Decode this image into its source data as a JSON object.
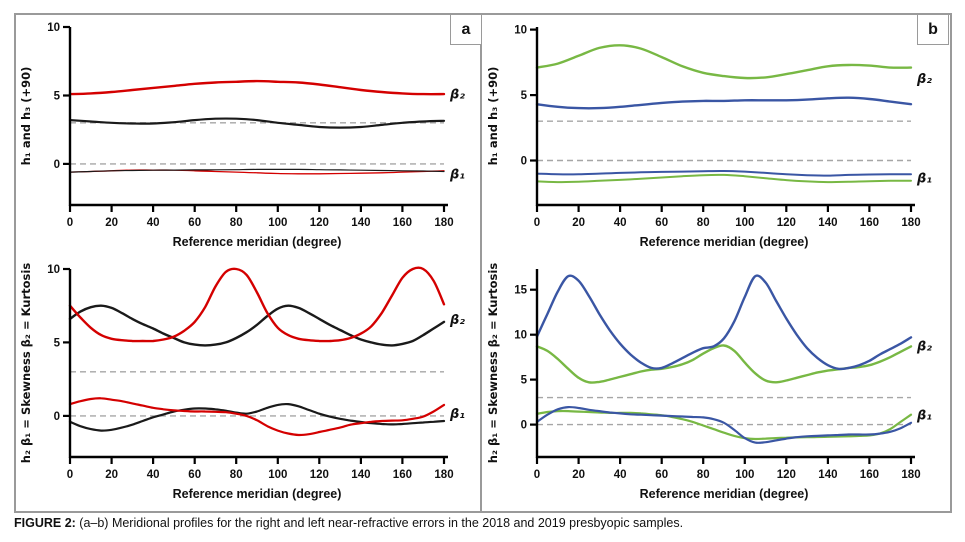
{
  "caption": {
    "prefix": "FIGURE 2:",
    "text": " (a–b) Meridional profiles for the right and left near-refractive errors in the 2018 and 2019 presbyopic samples."
  },
  "panels": [
    {
      "label": "a"
    },
    {
      "label": "b"
    }
  ],
  "colors": {
    "axis": "#000000",
    "dashed_guide": "#a6a6a6",
    "frame_border": "#9a9a9a",
    "red": "#d40000",
    "black_curve": "#1a1a1a",
    "green": "#78b844",
    "blue": "#3a56a4"
  },
  "chart_data": [
    {
      "id": "panel-a-top",
      "type": "line",
      "panel": "a",
      "xlabel": "Reference meridian (degree)",
      "ylabel": "h₁ and h₃ (+90)",
      "xlim": [
        0,
        180
      ],
      "xticks": [
        0,
        20,
        40,
        60,
        80,
        100,
        120,
        140,
        160,
        180
      ],
      "ylim": [
        -3.0,
        10
      ],
      "yticks": [
        0,
        5,
        10
      ],
      "grid": false,
      "legend_position": "none",
      "dashed_lines": [
        3,
        0
      ],
      "x": [
        0,
        10,
        20,
        30,
        40,
        50,
        60,
        70,
        80,
        90,
        100,
        110,
        120,
        130,
        140,
        150,
        160,
        170,
        180
      ],
      "series": [
        {
          "name": "red-beta2",
          "color": "#d40000",
          "width": 2.4,
          "values": [
            5.1,
            5.15,
            5.25,
            5.4,
            5.55,
            5.7,
            5.85,
            5.95,
            6.0,
            6.05,
            6.0,
            5.95,
            5.8,
            5.6,
            5.4,
            5.25,
            5.15,
            5.1,
            5.1
          ]
        },
        {
          "name": "black-h3",
          "color": "#1a1a1a",
          "width": 2.2,
          "values": [
            3.2,
            3.1,
            3.0,
            2.95,
            2.95,
            3.05,
            3.2,
            3.3,
            3.3,
            3.2,
            3.0,
            2.85,
            2.7,
            2.65,
            2.7,
            2.85,
            3.0,
            3.1,
            3.15
          ]
        },
        {
          "name": "red-beta1",
          "color": "#d40000",
          "width": 1.3,
          "values": [
            -0.6,
            -0.55,
            -0.5,
            -0.45,
            -0.45,
            -0.45,
            -0.5,
            -0.55,
            -0.6,
            -0.65,
            -0.7,
            -0.72,
            -0.72,
            -0.7,
            -0.68,
            -0.65,
            -0.6,
            -0.55,
            -0.5
          ]
        },
        {
          "name": "black-beta1",
          "color": "#1a1a1a",
          "width": 1.2,
          "values": [
            -0.6,
            -0.55,
            -0.5,
            -0.48,
            -0.46,
            -0.45,
            -0.44,
            -0.43,
            -0.42,
            -0.4,
            -0.4,
            -0.4,
            -0.42,
            -0.44,
            -0.46,
            -0.48,
            -0.5,
            -0.52,
            -0.55
          ]
        }
      ],
      "annotations": [
        {
          "text": "β₂",
          "y": 5.15
        },
        {
          "text": "β₁",
          "y": -0.7
        }
      ]
    },
    {
      "id": "panel-b-top",
      "type": "line",
      "panel": "b",
      "xlabel": "Reference meridian (degree)",
      "ylabel": "h₁ and h₃ (+90)",
      "xlim": [
        0,
        180
      ],
      "xticks": [
        0,
        20,
        40,
        60,
        80,
        100,
        120,
        140,
        160,
        180
      ],
      "ylim": [
        -3.4,
        10.2
      ],
      "yticks": [
        0,
        5,
        10
      ],
      "grid": false,
      "legend_position": "none",
      "dashed_lines": [
        3,
        0
      ],
      "x": [
        0,
        10,
        20,
        30,
        40,
        50,
        60,
        70,
        80,
        90,
        100,
        110,
        120,
        130,
        140,
        150,
        160,
        170,
        180
      ],
      "series": [
        {
          "name": "green-beta2",
          "color": "#78b844",
          "width": 2.4,
          "values": [
            7.1,
            7.4,
            8.0,
            8.6,
            8.8,
            8.55,
            7.9,
            7.2,
            6.7,
            6.45,
            6.3,
            6.35,
            6.6,
            6.9,
            7.2,
            7.3,
            7.25,
            7.1,
            7.1
          ]
        },
        {
          "name": "blue-beta2",
          "color": "#3a56a4",
          "width": 2.4,
          "values": [
            4.3,
            4.1,
            4.0,
            4.0,
            4.1,
            4.25,
            4.4,
            4.5,
            4.55,
            4.55,
            4.6,
            4.6,
            4.6,
            4.65,
            4.75,
            4.8,
            4.7,
            4.5,
            4.3
          ]
        },
        {
          "name": "blue-beta1",
          "color": "#3a56a4",
          "width": 2.0,
          "values": [
            -1.0,
            -1.05,
            -1.05,
            -1.0,
            -0.95,
            -0.9,
            -0.87,
            -0.85,
            -0.82,
            -0.8,
            -0.85,
            -0.95,
            -1.05,
            -1.12,
            -1.15,
            -1.1,
            -1.07,
            -1.05,
            -1.05
          ]
        },
        {
          "name": "green-beta1",
          "color": "#78b844",
          "width": 2.0,
          "values": [
            -1.6,
            -1.65,
            -1.62,
            -1.55,
            -1.48,
            -1.4,
            -1.3,
            -1.2,
            -1.12,
            -1.1,
            -1.2,
            -1.35,
            -1.5,
            -1.6,
            -1.65,
            -1.62,
            -1.58,
            -1.55,
            -1.55
          ]
        }
      ],
      "annotations": [
        {
          "text": "β₂",
          "y": 6.3
        },
        {
          "text": "β₁",
          "y": -1.3
        }
      ]
    },
    {
      "id": "panel-a-bottom",
      "type": "line",
      "panel": "a",
      "xlabel": "Reference meridian (degree)",
      "ylabel": "h₂ β₁ = Skewness β₂ = Kurtosis",
      "xlim": [
        0,
        180
      ],
      "xticks": [
        0,
        20,
        40,
        60,
        80,
        100,
        120,
        140,
        160,
        180
      ],
      "ylim": [
        -2.8,
        10
      ],
      "yticks": [
        0,
        5,
        10
      ],
      "grid": false,
      "legend_position": "none",
      "dashed_lines": [
        3,
        0
      ],
      "x": [
        0,
        5,
        10,
        15,
        20,
        25,
        30,
        35,
        40,
        45,
        50,
        55,
        60,
        65,
        70,
        75,
        80,
        85,
        90,
        95,
        100,
        105,
        110,
        115,
        120,
        125,
        130,
        135,
        140,
        145,
        150,
        155,
        160,
        165,
        170,
        175,
        180
      ],
      "series": [
        {
          "name": "black-kurtosis",
          "color": "#1a1a1a",
          "width": 2.4,
          "values": [
            6.6,
            7.1,
            7.4,
            7.5,
            7.35,
            7.0,
            6.6,
            6.25,
            5.95,
            5.6,
            5.3,
            5.0,
            4.85,
            4.8,
            4.85,
            5.0,
            5.3,
            5.7,
            6.2,
            6.8,
            7.3,
            7.5,
            7.35,
            7.0,
            6.6,
            6.2,
            5.85,
            5.5,
            5.2,
            5.0,
            4.85,
            4.8,
            4.9,
            5.1,
            5.5,
            5.95,
            6.4
          ]
        },
        {
          "name": "red-kurtosis",
          "color": "#d40000",
          "width": 2.4,
          "values": [
            7.5,
            6.7,
            6.0,
            5.5,
            5.25,
            5.15,
            5.1,
            5.1,
            5.1,
            5.2,
            5.4,
            5.8,
            6.4,
            7.4,
            8.8,
            9.8,
            10.0,
            9.6,
            8.4,
            7.0,
            6.0,
            5.5,
            5.25,
            5.15,
            5.1,
            5.1,
            5.15,
            5.3,
            5.6,
            6.1,
            7.0,
            8.2,
            9.4,
            10.0,
            10.0,
            9.2,
            7.6
          ]
        },
        {
          "name": "black-skewness",
          "color": "#1a1a1a",
          "width": 2.2,
          "values": [
            -0.4,
            -0.7,
            -0.9,
            -1.0,
            -0.95,
            -0.8,
            -0.6,
            -0.35,
            -0.1,
            0.1,
            0.3,
            0.42,
            0.5,
            0.5,
            0.45,
            0.35,
            0.22,
            0.15,
            0.3,
            0.55,
            0.75,
            0.8,
            0.65,
            0.4,
            0.15,
            -0.05,
            -0.2,
            -0.32,
            -0.42,
            -0.5,
            -0.55,
            -0.58,
            -0.55,
            -0.5,
            -0.45,
            -0.4,
            -0.35
          ]
        },
        {
          "name": "red-skewness",
          "color": "#d40000",
          "width": 2.2,
          "values": [
            0.8,
            1.0,
            1.15,
            1.2,
            1.1,
            1.0,
            0.85,
            0.7,
            0.55,
            0.45,
            0.38,
            0.33,
            0.3,
            0.3,
            0.28,
            0.25,
            0.15,
            0.0,
            -0.3,
            -0.7,
            -1.0,
            -1.2,
            -1.3,
            -1.25,
            -1.1,
            -0.95,
            -0.8,
            -0.6,
            -0.5,
            -0.4,
            -0.35,
            -0.32,
            -0.3,
            -0.2,
            -0.05,
            0.3,
            0.75
          ]
        }
      ],
      "annotations": [
        {
          "text": "β₂",
          "y": 6.6
        },
        {
          "text": "β₁",
          "y": 0.2
        }
      ]
    },
    {
      "id": "panel-b-bottom",
      "type": "line",
      "panel": "b",
      "xlabel": "Reference meridian (degree)",
      "ylabel": "h₂ β₁ = Skewness β₂ = Kurtosis",
      "xlim": [
        0,
        180
      ],
      "xticks": [
        0,
        20,
        40,
        60,
        80,
        100,
        120,
        140,
        160,
        180
      ],
      "ylim": [
        -3.6,
        17.3
      ],
      "yticks": [
        0,
        5,
        10,
        15
      ],
      "grid": false,
      "legend_position": "none",
      "dashed_lines": [
        3,
        0
      ],
      "x": [
        0,
        5,
        10,
        15,
        20,
        25,
        30,
        35,
        40,
        45,
        50,
        55,
        60,
        65,
        70,
        75,
        80,
        85,
        90,
        95,
        100,
        105,
        110,
        115,
        120,
        125,
        130,
        135,
        140,
        145,
        150,
        155,
        160,
        165,
        170,
        175,
        180
      ],
      "series": [
        {
          "name": "green-kurtosis",
          "color": "#78b844",
          "width": 2.4,
          "values": [
            8.7,
            8.2,
            7.3,
            6.2,
            5.2,
            4.7,
            4.75,
            5.0,
            5.3,
            5.6,
            5.9,
            6.1,
            6.2,
            6.4,
            6.7,
            7.2,
            7.9,
            8.5,
            8.8,
            8.2,
            6.9,
            5.7,
            4.9,
            4.7,
            4.9,
            5.2,
            5.5,
            5.8,
            6.0,
            6.15,
            6.3,
            6.4,
            6.6,
            7.0,
            7.5,
            8.1,
            8.7
          ]
        },
        {
          "name": "blue-kurtosis",
          "color": "#3a56a4",
          "width": 2.4,
          "values": [
            9.8,
            12.3,
            14.8,
            16.5,
            16.0,
            14.3,
            12.3,
            10.5,
            9.0,
            7.8,
            6.9,
            6.3,
            6.3,
            6.8,
            7.4,
            8.0,
            8.5,
            8.7,
            9.6,
            11.5,
            14.2,
            16.5,
            15.8,
            13.8,
            11.8,
            10.0,
            8.5,
            7.4,
            6.6,
            6.2,
            6.3,
            6.6,
            7.1,
            7.8,
            8.4,
            9.0,
            9.7
          ]
        },
        {
          "name": "green-skewness",
          "color": "#78b844",
          "width": 2.2,
          "values": [
            1.2,
            1.4,
            1.5,
            1.5,
            1.45,
            1.4,
            1.35,
            1.3,
            1.3,
            1.3,
            1.25,
            1.15,
            1.05,
            0.85,
            0.6,
            0.3,
            -0.1,
            -0.5,
            -0.9,
            -1.25,
            -1.5,
            -1.6,
            -1.55,
            -1.5,
            -1.45,
            -1.42,
            -1.4,
            -1.38,
            -1.35,
            -1.32,
            -1.3,
            -1.25,
            -1.2,
            -1.0,
            -0.5,
            0.3,
            1.1
          ]
        },
        {
          "name": "blue-skewness",
          "color": "#3a56a4",
          "width": 2.2,
          "values": [
            0.3,
            1.1,
            1.7,
            1.95,
            1.85,
            1.65,
            1.5,
            1.35,
            1.25,
            1.15,
            1.1,
            1.05,
            1.0,
            0.95,
            0.9,
            0.85,
            0.8,
            0.6,
            0.2,
            -0.6,
            -1.5,
            -2.0,
            -1.95,
            -1.75,
            -1.55,
            -1.4,
            -1.3,
            -1.25,
            -1.2,
            -1.15,
            -1.1,
            -1.1,
            -1.1,
            -1.0,
            -0.8,
            -0.4,
            0.2
          ]
        }
      ],
      "annotations": [
        {
          "text": "β₂",
          "y": 8.8
        },
        {
          "text": "β₁",
          "y": 1.1
        }
      ]
    }
  ]
}
